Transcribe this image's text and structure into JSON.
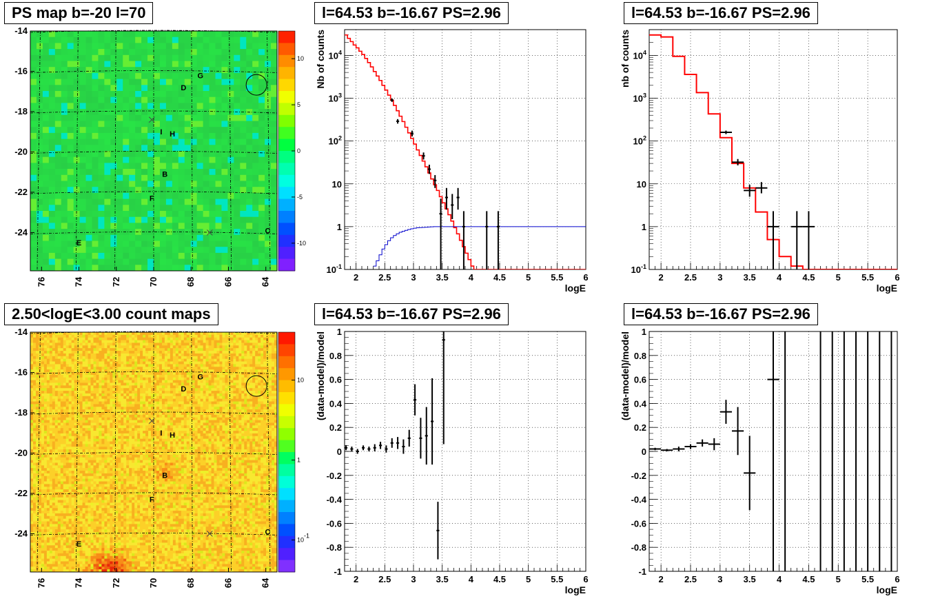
{
  "colors": {
    "frame": "#000000",
    "grid": "#000000",
    "model": "#ff0000",
    "exposure": "#0000cc",
    "data": "#000000"
  },
  "maps": [
    {
      "id": "psmap",
      "title": "PS map b=-20 l=70",
      "kind": "ps",
      "xticks": [
        "76",
        "74",
        "72",
        "70",
        "68",
        "66",
        "64"
      ],
      "yticks": [
        "-14",
        "-16",
        "-18",
        "-20",
        "-22",
        "-24"
      ],
      "colorbar_ticks": [
        {
          "label": "10",
          "v": 10
        },
        {
          "label": "5",
          "v": 5
        },
        {
          "label": "0",
          "v": 0
        },
        {
          "label": "-5",
          "v": -5
        },
        {
          "label": "-10",
          "v": -10
        }
      ]
    },
    {
      "id": "countmap",
      "title": "2.50<logE<3.00 count maps",
      "kind": "count",
      "xticks": [
        "76",
        "74",
        "72",
        "70",
        "68",
        "66",
        "64"
      ],
      "yticks": [
        "-14",
        "-16",
        "-18",
        "-20",
        "-22",
        "-24"
      ],
      "colorbar_ticks": [
        {
          "label": "10",
          "v": 1
        },
        {
          "label": "1",
          "v": 0
        },
        {
          "label": "10^-1",
          "v": -1
        }
      ]
    }
  ],
  "map_labels": [
    {
      "text": "G",
      "l": 67.5,
      "b": -16.2
    },
    {
      "text": "D",
      "l": 68.4,
      "b": -16.8
    },
    {
      "text": "I",
      "l": 69.6,
      "b": -19.0
    },
    {
      "text": "H",
      "l": 69.0,
      "b": -19.1
    },
    {
      "text": "B",
      "l": 69.4,
      "b": -21.1
    },
    {
      "text": "F",
      "l": 70.1,
      "b": -22.3
    },
    {
      "text": "C",
      "l": 63.9,
      "b": -23.9
    },
    {
      "text": "E",
      "l": 74.0,
      "b": -24.5
    }
  ],
  "chart_data": [
    {
      "id": "spec1",
      "type": "line",
      "title": "l=64.53 b=-16.67 PS=2.96",
      "xlabel": "logE",
      "ylabel": "Nb of counts",
      "xlim": [
        1.8,
        6
      ],
      "ylim": [
        0.1,
        40000
      ],
      "log_y": true,
      "grid": true,
      "xticks": [
        {
          "label": "2",
          "v": 2
        },
        {
          "label": "2.5",
          "v": 2.5
        },
        {
          "label": "3",
          "v": 3
        },
        {
          "label": "3.5",
          "v": 3.5
        },
        {
          "label": "4",
          "v": 4
        },
        {
          "label": "4.5",
          "v": 4.5
        },
        {
          "label": "5",
          "v": 5
        },
        {
          "label": "5.5",
          "v": 5.5
        },
        {
          "label": "6",
          "v": 6
        }
      ],
      "yticks": [
        {
          "label": "10^-1",
          "v": 0.1
        },
        {
          "label": "1",
          "v": 1
        },
        {
          "label": "10",
          "v": 10
        },
        {
          "label": "10^2",
          "v": 100
        },
        {
          "label": "10^3",
          "v": 1000
        },
        {
          "label": "10^4",
          "v": 10000
        }
      ],
      "model": {
        "edges": [
          1.8,
          1.9,
          2.0,
          2.1,
          2.2,
          2.3,
          2.4,
          2.5,
          2.6,
          2.7,
          2.8,
          2.9,
          3.0,
          3.1,
          3.2,
          3.3,
          3.4,
          3.5,
          3.6,
          3.7,
          3.8,
          3.9,
          4.0,
          4.1,
          4.2,
          4.3,
          4.4,
          4.5,
          4.6,
          4.7,
          4.8,
          4.9,
          5.0,
          5.1,
          5.2,
          5.3,
          5.4,
          5.5,
          5.6,
          5.7,
          5.8,
          5.9,
          6.0
        ],
        "values": [
          20000,
          15000,
          9000,
          5000,
          2500,
          1200,
          550,
          240,
          100,
          42,
          17,
          6.5,
          2.5,
          1.0,
          0.4,
          0.22,
          0.13,
          0.1,
          0.1,
          0.1,
          0.1,
          0.1,
          0.1,
          0.1,
          0.1,
          0.1,
          0.1,
          0.1,
          0.1,
          0.1,
          0.1,
          0.1,
          0.1,
          0.1,
          0.1,
          0.1,
          0.1,
          0.1,
          0.1,
          0.1,
          0.1,
          0.1
        ]
      },
      "model_fine": {
        "x0": 1.8,
        "step": 0.05,
        "values": [
          30000,
          25000,
          21000,
          17500,
          15000,
          12500,
          10500,
          8500,
          6800,
          5400,
          4200,
          3300,
          2600,
          2000,
          1550,
          1180,
          900,
          680,
          510,
          380,
          285,
          210,
          155,
          115,
          85,
          62,
          46,
          34,
          25,
          18,
          13,
          9.5,
          7,
          5,
          3.6,
          2.6,
          1.9,
          1.35,
          0.95,
          0.68,
          0.48,
          0.34,
          0.24,
          0.17,
          0.12,
          0.1,
          0.1,
          0.1,
          0.1,
          0.1,
          0.1,
          0.1,
          0.1,
          0.1,
          0.1,
          0.1,
          0.1,
          0.1,
          0.1,
          0.1,
          0.1,
          0.1,
          0.1,
          0.1,
          0.1,
          0.1,
          0.1,
          0.1,
          0.1,
          0.1,
          0.1,
          0.1,
          0.1,
          0.1,
          0.1,
          0.1,
          0.1,
          0.1,
          0.1,
          0.1,
          0.1,
          0.1,
          0.1,
          0.1
        ]
      },
      "exposure": {
        "edges": [
          2.3,
          2.35,
          2.4,
          2.45,
          2.5,
          2.55,
          2.6,
          2.65,
          2.7,
          2.75,
          2.8,
          2.85,
          2.9,
          2.95,
          3.0,
          3.05,
          3.1,
          3.15,
          3.2,
          3.25,
          3.3,
          3.35,
          3.4,
          3.5,
          3.6,
          3.7,
          3.8,
          3.9,
          4.0,
          4.1,
          4.2,
          4.3,
          4.4,
          4.5,
          4.6,
          4.7,
          4.8,
          4.9,
          5.0,
          5.1,
          5.2,
          5.3,
          5.4,
          5.5,
          5.6,
          5.7,
          5.8,
          5.9,
          6.0
        ],
        "values": [
          0.12,
          0.16,
          0.22,
          0.3,
          0.38,
          0.47,
          0.55,
          0.62,
          0.68,
          0.74,
          0.78,
          0.82,
          0.86,
          0.89,
          0.92,
          0.94,
          0.95,
          0.96,
          0.97,
          0.98,
          0.99,
          1.0,
          1.0,
          1.0,
          1.0,
          1.0,
          1.0,
          1.0,
          1.0,
          1.0,
          1.0,
          1.0,
          1.0,
          1.0,
          1.0,
          1.0,
          1.0,
          1.0,
          1.0,
          1.0,
          1.0,
          1.0,
          1.0,
          1.0,
          1.0,
          1.0,
          1.0,
          1.0
        ]
      },
      "points": [
        {
          "x": 2.625,
          "y": 900,
          "xe": 0.025,
          "ylo": 820,
          "yhi": 980
        },
        {
          "x": 2.725,
          "y": 290,
          "xe": 0.025,
          "ylo": 255,
          "yhi": 325
        },
        {
          "x": 2.975,
          "y": 150,
          "xe": 0.025,
          "ylo": 128,
          "yhi": 175
        },
        {
          "x": 3.175,
          "y": 45,
          "xe": 0.025,
          "ylo": 37,
          "yhi": 54
        },
        {
          "x": 3.275,
          "y": 22,
          "xe": 0.025,
          "ylo": 17,
          "yhi": 28
        },
        {
          "x": 3.375,
          "y": 12,
          "xe": 0.025,
          "ylo": 8,
          "yhi": 16
        },
        {
          "x": 3.475,
          "y": 2,
          "xe": 0.025,
          "ylo": 0.1,
          "yhi": 4.5
        },
        {
          "x": 3.575,
          "y": 4.8,
          "xe": 0.025,
          "ylo": 2.5,
          "yhi": 8
        },
        {
          "x": 3.675,
          "y": 3.2,
          "xe": 0.025,
          "ylo": 1.5,
          "yhi": 5.8
        },
        {
          "x": 3.775,
          "y": 4.8,
          "xe": 0.025,
          "ylo": 2.5,
          "yhi": 8
        },
        {
          "x": 3.875,
          "y": 1,
          "xe": 0.025,
          "ylo": 0.1,
          "yhi": 2.3
        },
        {
          "x": 4.275,
          "y": 1,
          "xe": 0.025,
          "ylo": 0.1,
          "yhi": 2.3
        },
        {
          "x": 4.475,
          "y": 1,
          "xe": 0.025,
          "ylo": 0.1,
          "yhi": 2.3
        }
      ]
    },
    {
      "id": "spec2",
      "type": "line",
      "title": "l=64.53 b=-16.67 PS=2.96",
      "xlabel": "logE",
      "ylabel": "nb of counts",
      "xlim": [
        1.8,
        6
      ],
      "ylim": [
        0.1,
        40000
      ],
      "log_y": true,
      "grid": true,
      "xticks": [
        {
          "label": "2",
          "v": 2
        },
        {
          "label": "2.5",
          "v": 2.5
        },
        {
          "label": "3",
          "v": 3
        },
        {
          "label": "3.5",
          "v": 3.5
        },
        {
          "label": "4",
          "v": 4
        },
        {
          "label": "4.5",
          "v": 4.5
        },
        {
          "label": "5",
          "v": 5
        },
        {
          "label": "5.5",
          "v": 5.5
        },
        {
          "label": "6",
          "v": 6
        }
      ],
      "yticks": [
        {
          "label": "10^-1",
          "v": 0.1
        },
        {
          "label": "1",
          "v": 1
        },
        {
          "label": "10",
          "v": 10
        },
        {
          "label": "10^2",
          "v": 100
        },
        {
          "label": "10^3",
          "v": 1000
        },
        {
          "label": "10^4",
          "v": 10000
        }
      ],
      "model": {
        "edges": [
          1.8,
          2.0,
          2.2,
          2.4,
          2.6,
          2.8,
          3.0,
          3.2,
          3.4,
          3.6,
          3.8,
          4.0,
          4.2,
          4.4,
          4.6,
          6.0
        ],
        "values": [
          30000,
          27000,
          9500,
          3600,
          1350,
          430,
          120,
          30,
          8,
          2.2,
          0.5,
          0.2,
          0.12,
          0.1,
          0.1
        ]
      },
      "points": [
        {
          "x": 3.1,
          "y": 160,
          "xe": 0.1,
          "ylo": 145,
          "yhi": 175
        },
        {
          "x": 3.3,
          "y": 32,
          "xe": 0.1,
          "ylo": 27,
          "yhi": 38
        },
        {
          "x": 3.5,
          "y": 7,
          "xe": 0.1,
          "ylo": 5,
          "yhi": 9.5
        },
        {
          "x": 3.7,
          "y": 8,
          "xe": 0.1,
          "ylo": 6,
          "yhi": 11
        },
        {
          "x": 3.9,
          "y": 1,
          "xe": 0.1,
          "ylo": 0.1,
          "yhi": 2.3
        },
        {
          "x": 4.3,
          "y": 1,
          "xe": 0.1,
          "ylo": 0.1,
          "yhi": 2.3
        },
        {
          "x": 4.5,
          "y": 1,
          "xe": 0.1,
          "ylo": 0.1,
          "yhi": 2.3
        }
      ]
    },
    {
      "id": "resid1",
      "type": "scatter",
      "title": "l=64.53 b=-16.67 PS=2.96",
      "xlabel": "logE",
      "ylabel": "(data-model)/model",
      "xlim": [
        1.8,
        6
      ],
      "ylim": [
        -1,
        1
      ],
      "grid": true,
      "xticks": [
        {
          "label": "2",
          "v": 2
        },
        {
          "label": "2.5",
          "v": 2.5
        },
        {
          "label": "3",
          "v": 3
        },
        {
          "label": "3.5",
          "v": 3.5
        },
        {
          "label": "4",
          "v": 4
        },
        {
          "label": "4.5",
          "v": 4.5
        },
        {
          "label": "5",
          "v": 5
        },
        {
          "label": "5.5",
          "v": 5.5
        },
        {
          "label": "6",
          "v": 6
        }
      ],
      "yticks": [
        {
          "label": "1",
          "v": 1
        },
        {
          "label": "0.8",
          "v": 0.8
        },
        {
          "label": "0.6",
          "v": 0.6
        },
        {
          "label": "0.4",
          "v": 0.4
        },
        {
          "label": "0.2",
          "v": 0.2
        },
        {
          "label": "0",
          "v": 0
        },
        {
          "label": "-0.2",
          "v": -0.2
        },
        {
          "label": "-0.4",
          "v": -0.4
        },
        {
          "label": "-0.6",
          "v": -0.6
        },
        {
          "label": "-0.8",
          "v": -0.8
        },
        {
          "label": "-1",
          "v": -1
        }
      ],
      "points": [
        {
          "x": 1.825,
          "y": 0.03,
          "xe": 0.025,
          "ylo": 0.01,
          "yhi": 0.05
        },
        {
          "x": 1.925,
          "y": 0.02,
          "xe": 0.025,
          "ylo": 0.0,
          "yhi": 0.04
        },
        {
          "x": 2.025,
          "y": 0.0,
          "xe": 0.025,
          "ylo": -0.02,
          "yhi": 0.02
        },
        {
          "x": 2.125,
          "y": 0.03,
          "xe": 0.025,
          "ylo": 0.01,
          "yhi": 0.05
        },
        {
          "x": 2.225,
          "y": 0.02,
          "xe": 0.025,
          "ylo": 0.0,
          "yhi": 0.04
        },
        {
          "x": 2.325,
          "y": 0.03,
          "xe": 0.025,
          "ylo": 0.0,
          "yhi": 0.06
        },
        {
          "x": 2.425,
          "y": 0.05,
          "xe": 0.025,
          "ylo": 0.02,
          "yhi": 0.08
        },
        {
          "x": 2.525,
          "y": 0.02,
          "xe": 0.025,
          "ylo": -0.01,
          "yhi": 0.05
        },
        {
          "x": 2.625,
          "y": 0.07,
          "xe": 0.025,
          "ylo": 0.03,
          "yhi": 0.11
        },
        {
          "x": 2.725,
          "y": 0.07,
          "xe": 0.025,
          "ylo": 0.02,
          "yhi": 0.12
        },
        {
          "x": 2.825,
          "y": 0.04,
          "xe": 0.025,
          "ylo": -0.02,
          "yhi": 0.1
        },
        {
          "x": 2.925,
          "y": 0.11,
          "xe": 0.025,
          "ylo": 0.04,
          "yhi": 0.18
        },
        {
          "x": 3.025,
          "y": 0.43,
          "xe": 0.025,
          "ylo": 0.3,
          "yhi": 0.56
        },
        {
          "x": 3.125,
          "y": 0.11,
          "xe": 0.025,
          "ylo": -0.06,
          "yhi": 0.28
        },
        {
          "x": 3.225,
          "y": 0.13,
          "xe": 0.025,
          "ylo": -0.11,
          "yhi": 0.37
        },
        {
          "x": 3.325,
          "y": 0.25,
          "xe": 0.025,
          "ylo": -0.11,
          "yhi": 0.61
        },
        {
          "x": 3.425,
          "y": -0.66,
          "xe": 0.025,
          "ylo": -0.9,
          "yhi": -0.42
        },
        {
          "x": 3.525,
          "y": 0.93,
          "xe": 0.025,
          "ylo": 0.06,
          "yhi": 1.0
        }
      ]
    },
    {
      "id": "resid2",
      "type": "scatter",
      "title": "l=64.53 b=-16.67 PS=2.96",
      "xlabel": "logE",
      "ylabel": "(data-model)/model",
      "xlim": [
        1.8,
        6
      ],
      "ylim": [
        -1,
        1
      ],
      "grid": true,
      "xticks": [
        {
          "label": "2",
          "v": 2
        },
        {
          "label": "2.5",
          "v": 2.5
        },
        {
          "label": "3",
          "v": 3
        },
        {
          "label": "3.5",
          "v": 3.5
        },
        {
          "label": "4",
          "v": 4
        },
        {
          "label": "4.5",
          "v": 4.5
        },
        {
          "label": "5",
          "v": 5
        },
        {
          "label": "5.5",
          "v": 5.5
        },
        {
          "label": "6",
          "v": 6
        }
      ],
      "yticks": [
        {
          "label": "1",
          "v": 1
        },
        {
          "label": "0.8",
          "v": 0.8
        },
        {
          "label": "0.6",
          "v": 0.6
        },
        {
          "label": "0.4",
          "v": 0.4
        },
        {
          "label": "0.2",
          "v": 0.2
        },
        {
          "label": "0",
          "v": 0
        },
        {
          "label": "-0.2",
          "v": -0.2
        },
        {
          "label": "-0.4",
          "v": -0.4
        },
        {
          "label": "-0.6",
          "v": -0.6
        },
        {
          "label": "-0.8",
          "v": -0.8
        },
        {
          "label": "-1",
          "v": -1
        }
      ],
      "points": [
        {
          "x": 1.9,
          "y": 0.02,
          "xe": 0.1,
          "ylo": 0.01,
          "yhi": 0.03
        },
        {
          "x": 2.1,
          "y": 0.01,
          "xe": 0.1,
          "ylo": 0.0,
          "yhi": 0.02
        },
        {
          "x": 2.3,
          "y": 0.02,
          "xe": 0.1,
          "ylo": 0.0,
          "yhi": 0.04
        },
        {
          "x": 2.5,
          "y": 0.04,
          "xe": 0.1,
          "ylo": 0.02,
          "yhi": 0.06
        },
        {
          "x": 2.7,
          "y": 0.07,
          "xe": 0.1,
          "ylo": 0.04,
          "yhi": 0.1
        },
        {
          "x": 2.9,
          "y": 0.06,
          "xe": 0.1,
          "ylo": 0.01,
          "yhi": 0.11
        },
        {
          "x": 3.1,
          "y": 0.33,
          "xe": 0.1,
          "ylo": 0.23,
          "yhi": 0.43
        },
        {
          "x": 3.3,
          "y": 0.17,
          "xe": 0.1,
          "ylo": -0.03,
          "yhi": 0.37
        },
        {
          "x": 3.5,
          "y": -0.18,
          "xe": 0.1,
          "ylo": -0.49,
          "yhi": 0.13
        },
        {
          "x": 3.9,
          "y": 0.6,
          "xe": 0.1,
          "ylo": -1,
          "yhi": 1
        },
        {
          "x": 4.1,
          "y": 1,
          "xe": 0.0,
          "ylo": -1,
          "yhi": 1
        },
        {
          "x": 4.7,
          "y": 1,
          "xe": 0.0,
          "ylo": -1,
          "yhi": 1
        },
        {
          "x": 4.9,
          "y": 1,
          "xe": 0.0,
          "ylo": -1,
          "yhi": 1
        },
        {
          "x": 5.1,
          "y": 1,
          "xe": 0.0,
          "ylo": -1,
          "yhi": 1
        },
        {
          "x": 5.3,
          "y": 1,
          "xe": 0.0,
          "ylo": -1,
          "yhi": 1
        },
        {
          "x": 5.5,
          "y": 1,
          "xe": 0.0,
          "ylo": -1,
          "yhi": 1
        },
        {
          "x": 5.7,
          "y": 1,
          "xe": 0.0,
          "ylo": -1,
          "yhi": 1
        },
        {
          "x": 5.9,
          "y": 1,
          "xe": 0.0,
          "ylo": -1,
          "yhi": 1
        }
      ]
    }
  ]
}
